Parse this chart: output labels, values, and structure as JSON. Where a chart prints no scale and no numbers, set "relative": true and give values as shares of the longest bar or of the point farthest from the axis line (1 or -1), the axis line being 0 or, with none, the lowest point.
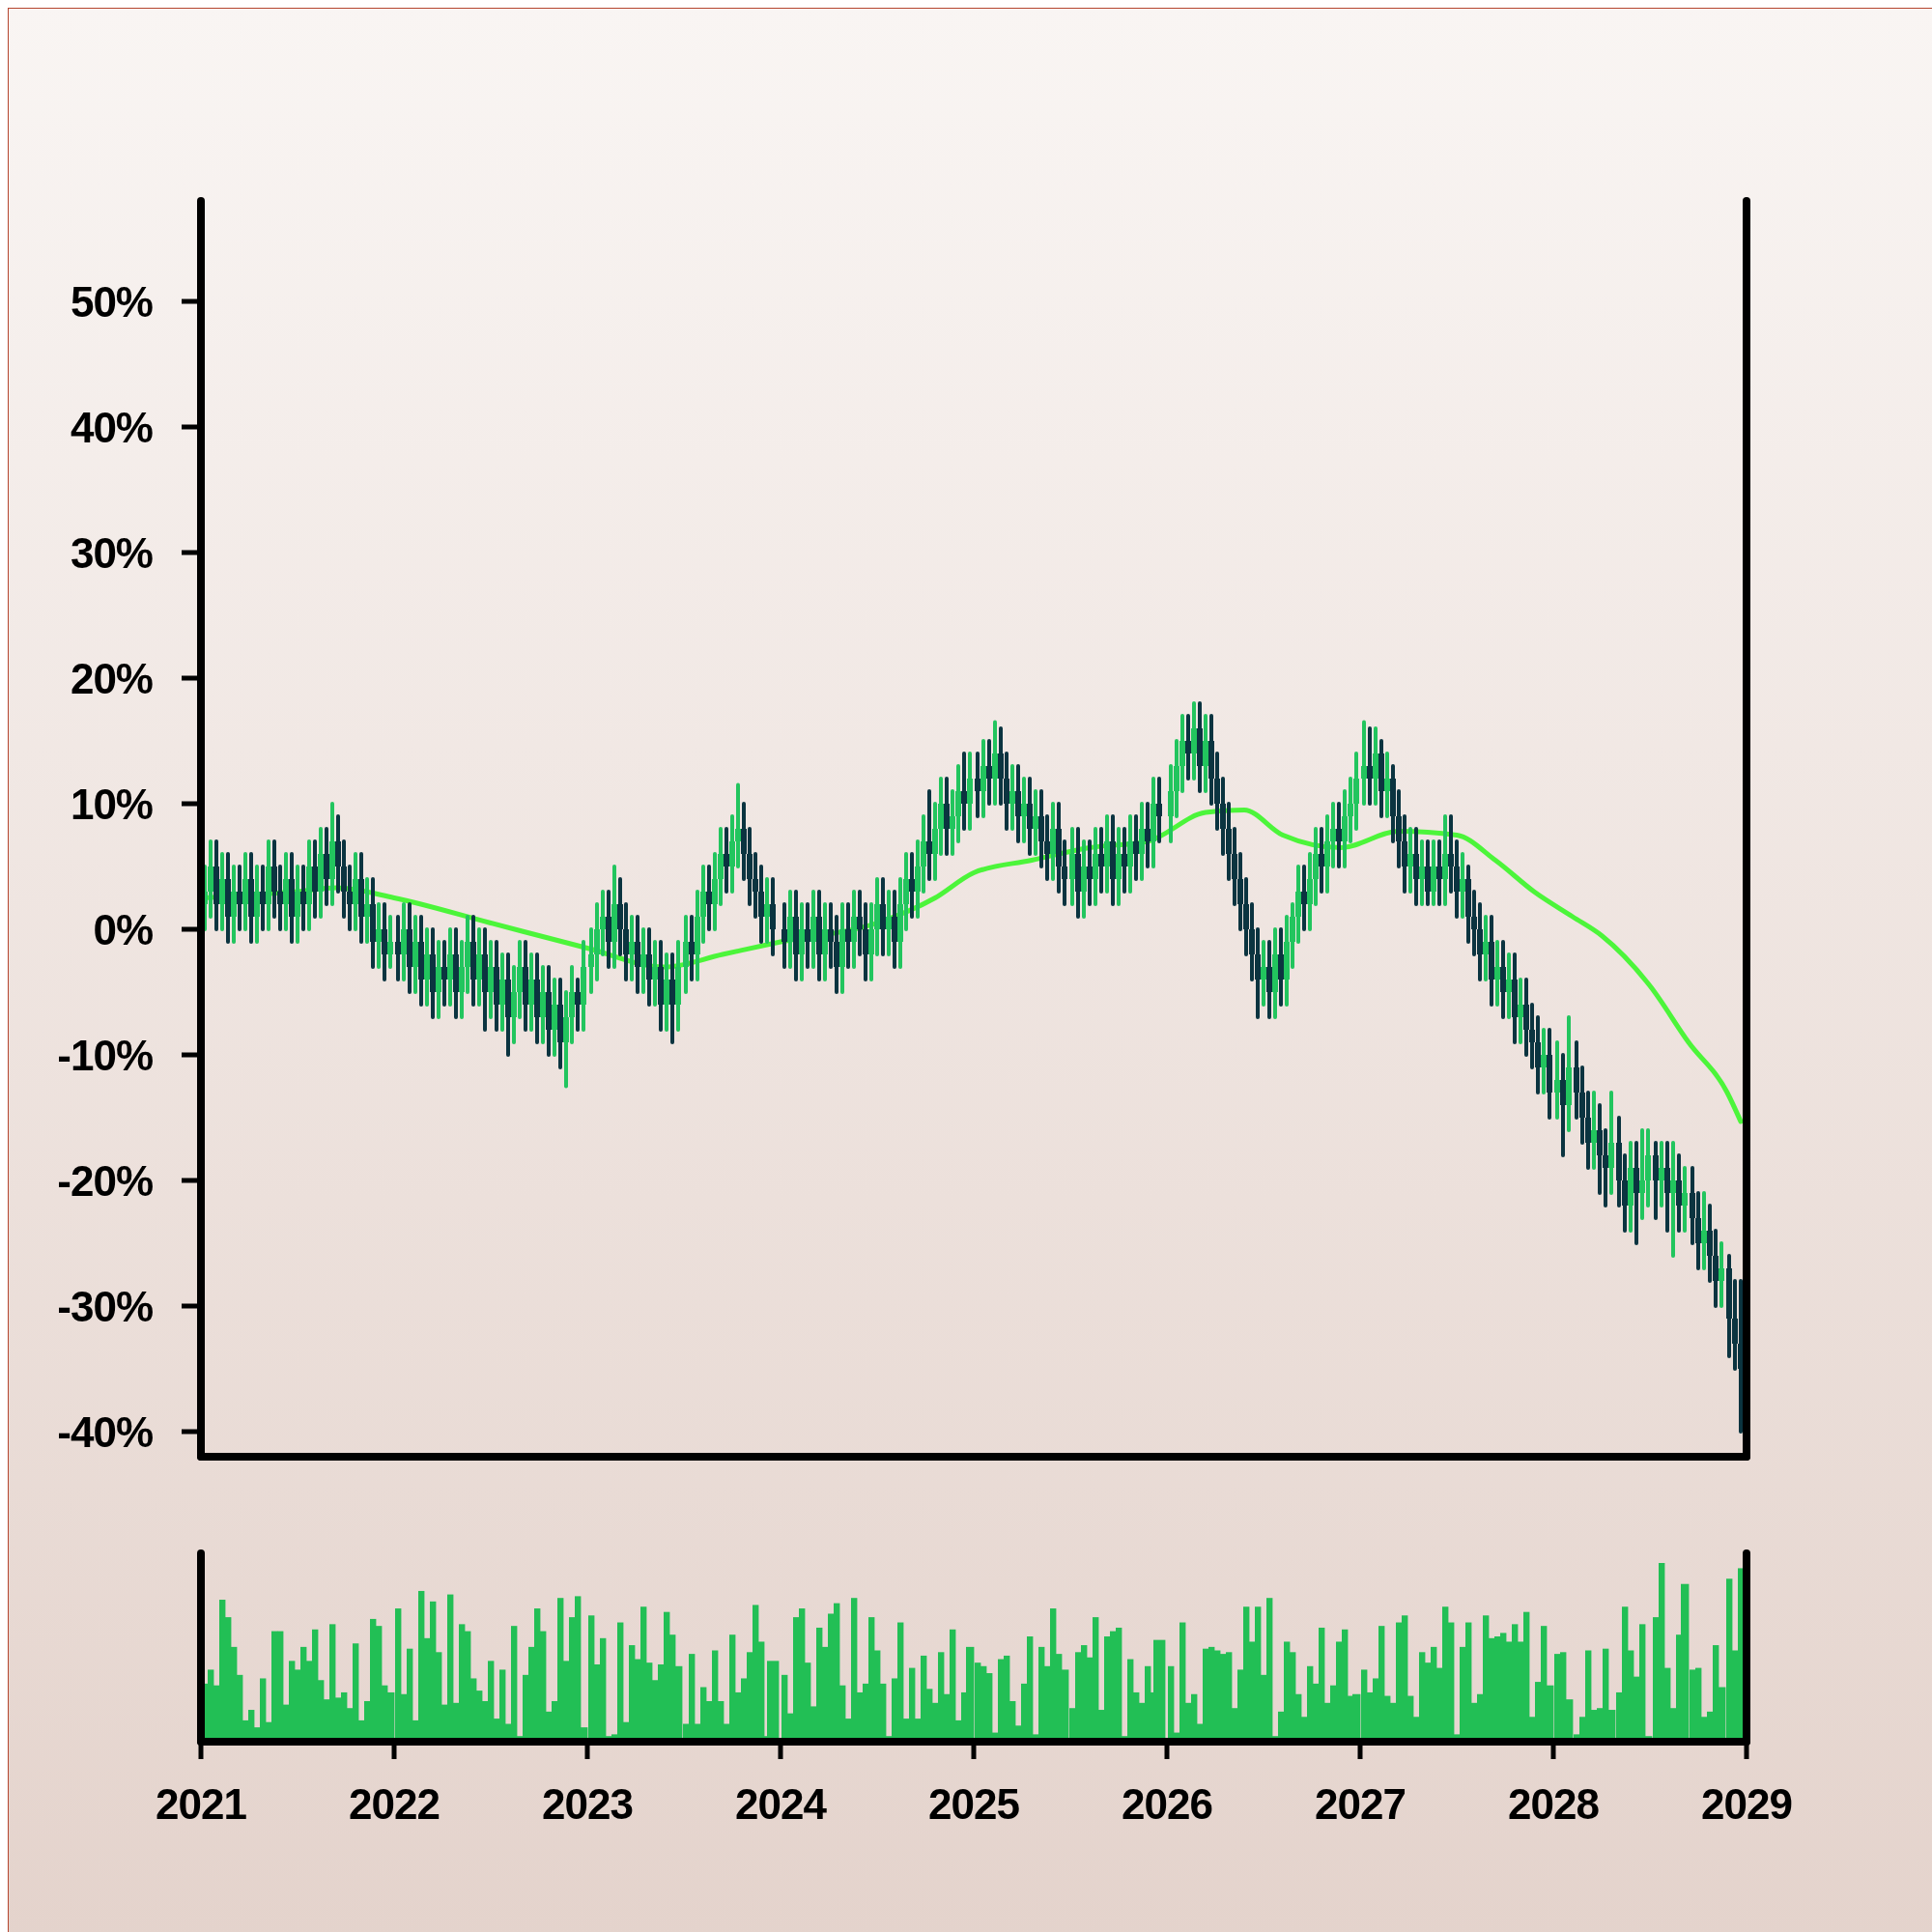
{
  "chart_data": [
    {
      "type": "candlestick",
      "xlim": [
        2021,
        2029
      ],
      "ylim": [
        -42,
        58
      ],
      "tick_labels": "y",
      "yticks": [
        {
          "value": -40,
          "label": "-40%"
        },
        {
          "value": -30,
          "label": "-30%"
        },
        {
          "value": -20,
          "label": "-20%"
        },
        {
          "value": -10,
          "label": "-10%"
        },
        {
          "value": 0,
          "label": "0%"
        },
        {
          "value": 10,
          "label": "10%"
        },
        {
          "value": 20,
          "label": "20%"
        },
        {
          "value": 30,
          "label": "30%"
        },
        {
          "value": 40,
          "label": "40%"
        },
        {
          "value": 50,
          "label": "50%"
        }
      ],
      "colors": [
        "#22c55e",
        "#22c55e",
        "#0b3440",
        "#22c55e",
        "#0b3440",
        "#22c55e",
        "#0b3440",
        "#22c55e",
        "#0b3440",
        "#22c55e",
        "#0b3440",
        "#22c55e",
        "#0b3440",
        "#0b3440",
        "#22c55e",
        "#0b3440",
        "#22c55e",
        "#0b3440",
        "#22c55e",
        "#0b3440",
        "#22c55e",
        "#0b3440",
        "#22c55e",
        "#0b3440",
        "#0b3440",
        "#0b3440",
        "#22c55e",
        "#0b3440",
        "#22c55e",
        "#0b3440",
        "#22c55e",
        "#0b3440",
        "#22c55e",
        "#0b3440",
        "#22c55e",
        "#0b3440",
        "#22c55e",
        "#0b3440",
        "#22c55e",
        "#0b3440",
        "#22c55e",
        "#0b3440",
        "#22c55e",
        "#0b3440",
        "#22c55e",
        "#22c55e",
        "#0b3440",
        "#22c55e",
        "#0b3440",
        "#22c55e",
        "#0b3440",
        "#22c55e",
        "#0b3440",
        "#22c55e",
        "#22c55e",
        "#0b3440",
        "#22c55e",
        "#0b3440",
        "#22c55e",
        "#0b3440",
        "#22c55e",
        "#0b3440",
        "#22c55e",
        "#22c55e",
        "#0b3440",
        "#22c55e",
        "#22c55e",
        "#22c55e",
        "#22c55e",
        "#0b3440",
        "#22c55e",
        "#0b3440",
        "#0b3440",
        "#22c55e",
        "#0b3440",
        "#22c55e",
        "#0b3440",
        "#22c55e",
        "#0b3440",
        "#22c55e",
        "#0b3440",
        "#22c55e",
        "#22c55e",
        "#0b3440",
        "#22c55e",
        "#22c55e",
        "#0b3440",
        "#22c55e",
        "#22c55e",
        "#0b3440",
        "#22c55e",
        "#22c55e",
        "#0b3440",
        "#0b3440",
        "#0b3440",
        "#0b3440",
        "#22c55e",
        "#0b3440",
        "#0b3440",
        "#22c55e",
        "#0b3440",
        "#22c55e",
        "#0b3440",
        "#22c55e",
        "#0b3440",
        "#22c55e",
        "#0b3440",
        "#0b3440",
        "#22c55e",
        "#0b3440",
        "#22c55e",
        "#0b3440",
        "#0b3440",
        "#22c55e",
        "#22c55e",
        "#0b3440",
        "#22c55e",
        "#0b3440",
        "#22c55e",
        "#22c55e",
        "#0b3440",
        "#22c55e",
        "#22c55e",
        "#0b3440",
        "#22c55e",
        "#22c55e",
        "#0b3440",
        "#22c55e",
        "#22c55e",
        "#0b3440",
        "#22c55e",
        "#0b3440",
        "#22c55e",
        "#0b3440",
        "#22c55e",
        "#0b3440",
        "#0b3440",
        "#22c55e",
        "#0b3440",
        "#22c55e",
        "#0b3440",
        "#22c55e",
        "#0b3440",
        "#0b3440",
        "#22c55e",
        "#0b3440",
        "#0b3440",
        "#22c55e",
        "#0b3440",
        "#22c55e",
        "#0b3440",
        "#22c55e",
        "#0b3440",
        "#22c55e",
        "#0b3440",
        "#22c55e",
        "#0b3440",
        "#22c55e",
        "#0b3440",
        "#22c55e",
        "#0b3440",
        "#22c55e",
        "#0b3440",
        "#22c55e",
        "#22c55e",
        "#22c55e",
        "#0b3440",
        "#22c55e",
        "#0b3440",
        "#22c55e",
        "#0b3440",
        "#0b3440",
        "#0b3440",
        "#0b3440",
        "#0b3440",
        "#0b3440",
        "#0b3440",
        "#0b3440",
        "#0b3440",
        "#22c55e",
        "#0b3440",
        "#22c55e",
        "#0b3440",
        "#22c55e",
        "#22c55e",
        "#22c55e",
        "#0b3440",
        "#22c55e",
        "#22c55e",
        "#0b3440",
        "#22c55e",
        "#22c55e",
        "#0b3440",
        "#22c55e",
        "#22c55e",
        "#22c55e",
        "#22c55e",
        "#0b3440",
        "#22c55e",
        "#0b3440",
        "#22c55e",
        "#0b3440",
        "#0b3440",
        "#0b3440",
        "#22c55e",
        "#0b3440",
        "#22c55e",
        "#0b3440",
        "#22c55e",
        "#0b3440",
        "#22c55e",
        "#0b3440",
        "#0b3440",
        "#22c55e",
        "#0b3440",
        "#0b3440",
        "#0b3440",
        "#22c55e",
        "#0b3440",
        "#22c55e",
        "#0b3440",
        "#22c55e",
        "#0b3440",
        "#22c55e",
        "#0b3440",
        "#0b3440",
        "#0b3440",
        "#22c55e",
        "#0b3440",
        "#22c55e",
        "#0b3440",
        "#22c55e",
        "#0b3440",
        "#0b3440",
        "#0b3440",
        "#22c55e",
        "#0b3440",
        "#0b3440",
        "#22c55e",
        "#0b3440",
        "#0b3440",
        "#22c55e",
        "#0b3440",
        "#22c55e",
        "#22c55e",
        "#0b3440",
        "#22c55e",
        "#0b3440",
        "#22c55e",
        "#0b3440",
        "#22c55e",
        "#0b3440",
        "#0b3440",
        "#22c55e",
        "#0b3440",
        "#0b3440",
        "#22c55e",
        "#0b3440",
        "#0b3440",
        "#0b3440"
      ],
      "x": [
        2021.02,
        2021.05,
        2021.08,
        2021.11,
        2021.14,
        2021.17,
        2021.2,
        2021.23,
        2021.26,
        2021.29,
        2021.32,
        2021.35,
        2021.38,
        2021.41,
        2021.44,
        2021.47,
        2021.5,
        2021.53,
        2021.56,
        2021.59,
        2021.62,
        2021.65,
        2021.68,
        2021.71,
        2021.74,
        2021.77,
        2021.8,
        2021.83,
        2021.86,
        2021.89,
        2021.92,
        2021.95,
        2021.98,
        2022.02,
        2022.05,
        2022.08,
        2022.11,
        2022.14,
        2022.17,
        2022.2,
        2022.23,
        2022.26,
        2022.29,
        2022.32,
        2022.35,
        2022.38,
        2022.41,
        2022.44,
        2022.47,
        2022.5,
        2022.53,
        2022.56,
        2022.59,
        2022.62,
        2022.65,
        2022.68,
        2022.71,
        2022.74,
        2022.77,
        2022.8,
        2022.83,
        2022.86,
        2022.89,
        2022.92,
        2022.95,
        2022.98,
        2023.02,
        2023.05,
        2023.08,
        2023.11,
        2023.14,
        2023.17,
        2023.2,
        2023.23,
        2023.26,
        2023.29,
        2023.32,
        2023.35,
        2023.38,
        2023.41,
        2023.44,
        2023.47,
        2023.51,
        2023.54,
        2023.57,
        2023.6,
        2023.63,
        2023.66,
        2023.69,
        2023.72,
        2023.75,
        2023.78,
        2023.81,
        2023.84,
        2023.87,
        2023.9,
        2023.93,
        2023.96,
        2024.02,
        2024.05,
        2024.08,
        2024.11,
        2024.14,
        2024.17,
        2024.2,
        2024.23,
        2024.26,
        2024.29,
        2024.32,
        2024.35,
        2024.38,
        2024.41,
        2024.44,
        2024.47,
        2024.5,
        2024.53,
        2024.56,
        2024.59,
        2024.62,
        2024.65,
        2024.68,
        2024.71,
        2024.74,
        2024.77,
        2024.8,
        2024.83,
        2024.86,
        2024.89,
        2024.92,
        2024.95,
        2024.98,
        2025.02,
        2025.05,
        2025.08,
        2025.11,
        2025.14,
        2025.17,
        2025.2,
        2025.23,
        2025.26,
        2025.29,
        2025.32,
        2025.35,
        2025.38,
        2025.41,
        2025.44,
        2025.47,
        2025.51,
        2025.54,
        2025.57,
        2025.6,
        2025.63,
        2025.66,
        2025.69,
        2025.72,
        2025.75,
        2025.78,
        2025.81,
        2025.84,
        2025.87,
        2025.9,
        2025.93,
        2025.96,
        2026.02,
        2026.05,
        2026.08,
        2026.11,
        2026.14,
        2026.17,
        2026.2,
        2026.23,
        2026.26,
        2026.29,
        2026.32,
        2026.35,
        2026.38,
        2026.41,
        2026.44,
        2026.47,
        2026.5,
        2026.53,
        2026.56,
        2026.59,
        2026.62,
        2026.65,
        2026.68,
        2026.71,
        2026.74,
        2026.77,
        2026.8,
        2026.83,
        2026.86,
        2026.89,
        2026.92,
        2026.95,
        2026.98,
        2027.02,
        2027.05,
        2027.08,
        2027.11,
        2027.14,
        2027.17,
        2027.2,
        2027.23,
        2027.26,
        2027.29,
        2027.32,
        2027.35,
        2027.38,
        2027.41,
        2027.44,
        2027.47,
        2027.5,
        2027.53,
        2027.56,
        2027.59,
        2027.62,
        2027.65,
        2027.68,
        2027.71,
        2027.74,
        2027.77,
        2027.8,
        2027.83,
        2027.86,
        2027.89,
        2027.92,
        2027.95,
        2027.98,
        2028.02,
        2028.05,
        2028.08,
        2028.12,
        2028.15,
        2028.18,
        2028.21,
        2028.24,
        2028.27,
        2028.3,
        2028.34,
        2028.37,
        2028.4,
        2028.43,
        2028.46,
        2028.49,
        2028.53,
        2028.56,
        2028.59,
        2028.62,
        2028.65,
        2028.68,
        2028.72,
        2028.75,
        2028.78,
        2028.81,
        2028.84,
        2028.87,
        2028.91,
        2028.94,
        2028.97
      ],
      "ohlc": [
        [
          2,
          5,
          0,
          3
        ],
        [
          3,
          7,
          1,
          5
        ],
        [
          5,
          7,
          0,
          2
        ],
        [
          2,
          6,
          0,
          4
        ],
        [
          4,
          6,
          -1,
          1
        ],
        [
          1,
          5,
          -1,
          3
        ],
        [
          3,
          5,
          0,
          2
        ],
        [
          2,
          6,
          0,
          4
        ],
        [
          4,
          6,
          -1,
          1
        ],
        [
          1,
          5,
          -1,
          3
        ],
        [
          3,
          5,
          0,
          2
        ],
        [
          2,
          7,
          0,
          5
        ],
        [
          5,
          7,
          1,
          3
        ],
        [
          3,
          5,
          0,
          2
        ],
        [
          2,
          6,
          0,
          4
        ],
        [
          4,
          6,
          -1,
          1
        ],
        [
          1,
          5,
          -1,
          3
        ],
        [
          3,
          5,
          0,
          2
        ],
        [
          2,
          7,
          0,
          5
        ],
        [
          5,
          7,
          1,
          3
        ],
        [
          3,
          8,
          1,
          6
        ],
        [
          6,
          8,
          2,
          4
        ],
        [
          4,
          10,
          2,
          7
        ],
        [
          7,
          9,
          3,
          5
        ],
        [
          5,
          7,
          1,
          3
        ],
        [
          3,
          5,
          0,
          2
        ],
        [
          2,
          6,
          0,
          4
        ],
        [
          4,
          6,
          -1,
          1
        ],
        [
          1,
          4,
          -1,
          2
        ],
        [
          2,
          4,
          -3,
          -1
        ],
        [
          -1,
          2,
          -3,
          0
        ],
        [
          0,
          2,
          -4,
          -2
        ],
        [
          -2,
          1,
          -3,
          -1
        ],
        [
          -1,
          1,
          -4,
          -2
        ],
        [
          -2,
          2,
          -4,
          0
        ],
        [
          0,
          2,
          -5,
          -3
        ],
        [
          -3,
          1,
          -5,
          -1
        ],
        [
          -1,
          1,
          -6,
          -4
        ],
        [
          -4,
          0,
          -6,
          -2
        ],
        [
          -2,
          0,
          -7,
          -5
        ],
        [
          -5,
          -1,
          -7,
          -3
        ],
        [
          -3,
          -1,
          -6,
          -4
        ],
        [
          -4,
          0,
          -6,
          -2
        ],
        [
          -2,
          0,
          -7,
          -5
        ],
        [
          -5,
          -1,
          -7,
          -3
        ],
        [
          -3,
          1,
          -5,
          -1
        ],
        [
          -1,
          1,
          -6,
          -4
        ],
        [
          -4,
          0,
          -6,
          -2
        ],
        [
          -2,
          0,
          -8,
          -5
        ],
        [
          -5,
          -1,
          -7,
          -3
        ],
        [
          -3,
          -1,
          -8,
          -6
        ],
        [
          -6,
          -2,
          -8,
          -4
        ],
        [
          -4,
          -2,
          -10,
          -7
        ],
        [
          -7,
          -3,
          -9,
          -5
        ],
        [
          -5,
          -1,
          -7,
          -3
        ],
        [
          -3,
          -1,
          -8,
          -6
        ],
        [
          -6,
          -2,
          -8,
          -4
        ],
        [
          -4,
          -2,
          -9,
          -7
        ],
        [
          -7,
          -3,
          -9,
          -5
        ],
        [
          -5,
          -3,
          -10,
          -8
        ],
        [
          -8,
          -4,
          -10,
          -6
        ],
        [
          -6,
          -4,
          -11,
          -9
        ],
        [
          -9,
          -5,
          -12.5,
          -7
        ],
        [
          -7,
          -3,
          -9,
          -5
        ],
        [
          -5,
          -4,
          -8,
          -6
        ],
        [
          -6,
          -1,
          -8,
          -3
        ],
        [
          -3,
          0,
          -5,
          -2
        ],
        [
          -2,
          2,
          -4,
          0
        ],
        [
          0,
          3,
          -2,
          1
        ],
        [
          1,
          3,
          -3,
          -1
        ],
        [
          -1,
          5,
          -3,
          2
        ],
        [
          2,
          4,
          -2,
          0
        ],
        [
          0,
          2,
          -4,
          -2
        ],
        [
          -2,
          1,
          -4,
          -1
        ],
        [
          -1,
          1,
          -5,
          -3
        ],
        [
          -3,
          0,
          -5,
          -2
        ],
        [
          -2,
          0,
          -6,
          -4
        ],
        [
          -4,
          -1,
          -6,
          -3
        ],
        [
          -3,
          -1,
          -8,
          -6
        ],
        [
          -6,
          -2,
          -8,
          -4
        ],
        [
          -4,
          -2,
          -9,
          -6
        ],
        [
          -6,
          -1,
          -8,
          -3
        ],
        [
          -3,
          1,
          -5,
          -1
        ],
        [
          -1,
          1,
          -4,
          -2
        ],
        [
          -2,
          3,
          -4,
          1
        ],
        [
          1,
          5,
          -1,
          3
        ],
        [
          3,
          5,
          0,
          2
        ],
        [
          2,
          6,
          0,
          4
        ],
        [
          4,
          8,
          2,
          6
        ],
        [
          6,
          8,
          3,
          5
        ],
        [
          5,
          9,
          3,
          7
        ],
        [
          7,
          11.5,
          5,
          8
        ],
        [
          8,
          10,
          4,
          6
        ],
        [
          6,
          8,
          2,
          4
        ],
        [
          4,
          6,
          1,
          3
        ],
        [
          3,
          5,
          -1,
          1
        ],
        [
          1,
          4,
          -1,
          2
        ],
        [
          2,
          4,
          -2,
          0
        ],
        [
          0,
          2,
          -3,
          -1
        ],
        [
          -1,
          3,
          -3,
          1
        ],
        [
          1,
          3,
          -4,
          -2
        ],
        [
          -2,
          2,
          -4,
          0
        ],
        [
          0,
          2,
          -3,
          -1
        ],
        [
          -1,
          3,
          -3,
          1
        ],
        [
          1,
          3,
          -4,
          -2
        ],
        [
          -2,
          2,
          -4,
          0
        ],
        [
          0,
          2,
          -3,
          -1
        ],
        [
          -1,
          1,
          -5,
          -3
        ],
        [
          -3,
          2,
          -5,
          0
        ],
        [
          0,
          2,
          -3,
          -1
        ],
        [
          -1,
          3,
          -3,
          1
        ],
        [
          1,
          3,
          -2,
          0
        ],
        [
          0,
          2,
          -4,
          -2
        ],
        [
          -2,
          2,
          -4,
          0
        ],
        [
          0,
          4,
          -2,
          2
        ],
        [
          2,
          4,
          -2,
          0
        ],
        [
          0,
          3,
          -2,
          1
        ],
        [
          1,
          3,
          -3,
          -1
        ],
        [
          -1,
          4,
          -3,
          2
        ],
        [
          2,
          6,
          0,
          4
        ],
        [
          4,
          6,
          1,
          3
        ],
        [
          3,
          7,
          1,
          5
        ],
        [
          5,
          9,
          3,
          7
        ],
        [
          7,
          11,
          4,
          6
        ],
        [
          6,
          10,
          4,
          8
        ],
        [
          8,
          12,
          6,
          10
        ],
        [
          10,
          12,
          6,
          8
        ],
        [
          8,
          11,
          6,
          9
        ],
        [
          9,
          13,
          7,
          11
        ],
        [
          11,
          14,
          8,
          10
        ],
        [
          10,
          14,
          8,
          12
        ],
        [
          12,
          14,
          9,
          11
        ],
        [
          11,
          15,
          9,
          13
        ],
        [
          13,
          15,
          10,
          12
        ],
        [
          12,
          16.5,
          10,
          14
        ],
        [
          14,
          16,
          10,
          12
        ],
        [
          12,
          14,
          8,
          10
        ],
        [
          10,
          13,
          8,
          11
        ],
        [
          11,
          13,
          7,
          9
        ],
        [
          9,
          12,
          7,
          10
        ],
        [
          10,
          12,
          6,
          8
        ],
        [
          8,
          11,
          6,
          9
        ],
        [
          9,
          11,
          5,
          7
        ],
        [
          7,
          9,
          4,
          6
        ],
        [
          6,
          10,
          4,
          8
        ],
        [
          8,
          10,
          3,
          5
        ],
        [
          5,
          7,
          2,
          4
        ],
        [
          4,
          8,
          2,
          6
        ],
        [
          6,
          8,
          1,
          3
        ],
        [
          3,
          7,
          1,
          5
        ],
        [
          5,
          7,
          2,
          4
        ],
        [
          4,
          8,
          2,
          6
        ],
        [
          6,
          8,
          3,
          5
        ],
        [
          5,
          9,
          3,
          7
        ],
        [
          7,
          9,
          2,
          4
        ],
        [
          4,
          8,
          2,
          6
        ],
        [
          6,
          8,
          3,
          5
        ],
        [
          5,
          9,
          3,
          7
        ],
        [
          7,
          9,
          4,
          6
        ],
        [
          6,
          10,
          4,
          8
        ],
        [
          8,
          10,
          5,
          7
        ],
        [
          7,
          12,
          5,
          10
        ],
        [
          10,
          12,
          7,
          9
        ],
        [
          9,
          13,
          7,
          11
        ],
        [
          11,
          15,
          9,
          13
        ],
        [
          13,
          17,
          11,
          15
        ],
        [
          15,
          17,
          12,
          14
        ],
        [
          14,
          18,
          12,
          16
        ],
        [
          16,
          18,
          11,
          13
        ],
        [
          13,
          17,
          11,
          15
        ],
        [
          15,
          17,
          10,
          12
        ],
        [
          12,
          14,
          8,
          10
        ],
        [
          10,
          12,
          6,
          8
        ],
        [
          8,
          10,
          4,
          6
        ],
        [
          6,
          8,
          2,
          4
        ],
        [
          4,
          6,
          0,
          2
        ],
        [
          2,
          4,
          -2,
          0
        ],
        [
          0,
          2,
          -4,
          -2
        ],
        [
          -2,
          0,
          -7,
          -4
        ],
        [
          -4,
          -1,
          -6,
          -3
        ],
        [
          -3,
          -1,
          -7,
          -5
        ],
        [
          -5,
          0,
          -7,
          -2
        ],
        [
          -2,
          0,
          -6,
          -4
        ],
        [
          -4,
          1,
          -6,
          -1
        ],
        [
          -1,
          2,
          -3,
          1
        ],
        [
          1,
          5,
          -1,
          3
        ],
        [
          3,
          5,
          0,
          2
        ],
        [
          2,
          6,
          0,
          4
        ],
        [
          4,
          8,
          2,
          6
        ],
        [
          6,
          8,
          3,
          5
        ],
        [
          5,
          9,
          3,
          7
        ],
        [
          7,
          10,
          5,
          8
        ],
        [
          8,
          10,
          5,
          7
        ],
        [
          7,
          11,
          5,
          9
        ],
        [
          9,
          12,
          7,
          10
        ],
        [
          10,
          14,
          8,
          12
        ],
        [
          12,
          16.5,
          10,
          13
        ],
        [
          13,
          16,
          10,
          12
        ],
        [
          12,
          16,
          10,
          14
        ],
        [
          14,
          15,
          9,
          11
        ],
        [
          11,
          14,
          9,
          12
        ],
        [
          12,
          13,
          7,
          9
        ],
        [
          9,
          11,
          5,
          7
        ],
        [
          7,
          9,
          3,
          5
        ],
        [
          5,
          8,
          3,
          6
        ],
        [
          6,
          8,
          2,
          4
        ],
        [
          4,
          7,
          2,
          5
        ],
        [
          5,
          7,
          2,
          3
        ],
        [
          3,
          7,
          2,
          5
        ],
        [
          5,
          7,
          2,
          4
        ],
        [
          4,
          9,
          2,
          6
        ],
        [
          6,
          9,
          3,
          5
        ],
        [
          5,
          7,
          1,
          3
        ],
        [
          3,
          6,
          1,
          4
        ],
        [
          4,
          5,
          -1,
          1
        ],
        [
          1,
          3,
          -2,
          0
        ],
        [
          0,
          2,
          -4,
          -2
        ],
        [
          -2,
          1,
          -4,
          -1
        ],
        [
          -1,
          1,
          -6,
          -4
        ],
        [
          -4,
          -1,
          -6,
          -3
        ],
        [
          -3,
          -1,
          -7,
          -5
        ],
        [
          -5,
          -2,
          -7,
          -4
        ],
        [
          -4,
          -2,
          -9,
          -7
        ],
        [
          -7,
          -4,
          -9,
          -6
        ],
        [
          -6,
          -4,
          -10,
          -8
        ],
        [
          -8,
          -6,
          -11,
          -9
        ],
        [
          -9,
          -7,
          -13,
          -11
        ],
        [
          -11,
          -8,
          -13,
          -10
        ],
        [
          -10,
          -8,
          -15,
          -13
        ],
        [
          -13,
          -9,
          -15,
          -12
        ],
        [
          -12,
          -10,
          -18,
          -14
        ],
        [
          -14,
          -7,
          -16,
          -11
        ],
        [
          -11,
          -9,
          -15,
          -13
        ],
        [
          -13,
          -11,
          -17,
          -15
        ],
        [
          -15,
          -13,
          -19,
          -17
        ],
        [
          -17,
          -13,
          -19,
          -16
        ],
        [
          -16,
          -14,
          -21,
          -18
        ],
        [
          -18,
          -16,
          -22,
          -19
        ],
        [
          -19,
          -13,
          -21,
          -17
        ],
        [
          -17,
          -15,
          -22,
          -20
        ],
        [
          -20,
          -18,
          -24,
          -22
        ],
        [
          -22,
          -17,
          -24,
          -19
        ],
        [
          -19,
          -17,
          -25,
          -21
        ],
        [
          -21,
          -16,
          -23,
          -20
        ],
        [
          -20,
          -16,
          -22,
          -18
        ],
        [
          -18,
          -17,
          -23,
          -20
        ],
        [
          -20,
          -17,
          -22,
          -19
        ],
        [
          -19,
          -17,
          -24,
          -21
        ],
        [
          -21,
          -17,
          -26,
          -20
        ],
        [
          -20,
          -18,
          -24,
          -22
        ],
        [
          -22,
          -19,
          -24,
          -21
        ],
        [
          -21,
          -19,
          -25,
          -23
        ],
        [
          -23,
          -21,
          -27,
          -25
        ],
        [
          -25,
          -21,
          -27,
          -24
        ],
        [
          -24,
          -22,
          -28,
          -26
        ],
        [
          -26,
          -24,
          -30,
          -28
        ],
        [
          -28,
          -25,
          -30,
          -27
        ],
        [
          -27,
          -26,
          -34,
          -31
        ],
        [
          -31,
          -28,
          -35,
          -33
        ],
        [
          -33,
          -28,
          -40,
          -35
        ]
      ],
      "series": [
        {
          "type": "line",
          "color": "#4cf53a",
          "x": [
            2021.02,
            2021.2,
            2021.5,
            2021.7,
            2022.0,
            2022.5,
            2023.0,
            2023.4,
            2023.7,
            2024.0,
            2024.5,
            2024.8,
            2025.0,
            2025.3,
            2025.6,
            2025.9,
            2026.2,
            2026.4,
            2026.6,
            2026.9,
            2027.2,
            2027.5,
            2027.7,
            2027.9,
            2028.1,
            2028.25,
            2028.5,
            2028.7,
            2028.9,
            2028.97
          ],
          "values": [
            2.5,
            2.7,
            3,
            3.3,
            2.5,
            0.5,
            -1.5,
            -3,
            -2,
            -1,
            0.5,
            2.5,
            4.5,
            5.5,
            6.5,
            7,
            9.3,
            9.5,
            7.5,
            6.5,
            7.8,
            7.5,
            5.5,
            3,
            1,
            -0.5,
            -4.5,
            -9,
            -13,
            -15.3
          ]
        }
      ]
    },
    {
      "type": "bar",
      "relative": true,
      "color": "#22bf55",
      "xlim": [
        2021,
        2029
      ],
      "tick_labels": "x",
      "xticks": [
        2021,
        2022,
        2023,
        2024,
        2025,
        2026,
        2027,
        2028,
        2029
      ],
      "x": [
        2021.02,
        2021.05,
        2021.08,
        2021.11,
        2021.14,
        2021.17,
        2021.2,
        2021.23,
        2021.26,
        2021.29,
        2021.32,
        2021.35,
        2021.38,
        2021.41,
        2021.44,
        2021.47,
        2021.5,
        2021.53,
        2021.56,
        2021.59,
        2021.62,
        2021.65,
        2021.68,
        2021.71,
        2021.74,
        2021.77,
        2021.8,
        2021.83,
        2021.86,
        2021.89,
        2021.92,
        2021.95,
        2021.98,
        2022.02,
        2022.05,
        2022.08,
        2022.11,
        2022.14,
        2022.17,
        2022.2,
        2022.23,
        2022.26,
        2022.29,
        2022.32,
        2022.35,
        2022.38,
        2022.41,
        2022.44,
        2022.47,
        2022.5,
        2022.53,
        2022.56,
        2022.59,
        2022.62,
        2022.65,
        2022.68,
        2022.71,
        2022.74,
        2022.77,
        2022.8,
        2022.83,
        2022.86,
        2022.89,
        2022.92,
        2022.95,
        2022.98,
        2023.02,
        2023.05,
        2023.08,
        2023.11,
        2023.14,
        2023.17,
        2023.2,
        2023.23,
        2023.26,
        2023.29,
        2023.32,
        2023.35,
        2023.38,
        2023.41,
        2023.44,
        2023.47,
        2023.51,
        2023.54,
        2023.57,
        2023.6,
        2023.63,
        2023.66,
        2023.69,
        2023.72,
        2023.75,
        2023.78,
        2023.81,
        2023.84,
        2023.87,
        2023.9,
        2023.93,
        2023.96,
        2024.02,
        2024.05,
        2024.08,
        2024.11,
        2024.14,
        2024.17,
        2024.2,
        2024.23,
        2024.26,
        2024.29,
        2024.32,
        2024.35,
        2024.38,
        2024.41,
        2024.44,
        2024.47,
        2024.5,
        2024.53,
        2024.56,
        2024.59,
        2024.62,
        2024.65,
        2024.68,
        2024.71,
        2024.74,
        2024.77,
        2024.8,
        2024.83,
        2024.86,
        2024.89,
        2024.92,
        2024.95,
        2024.98,
        2025.02,
        2025.05,
        2025.08,
        2025.11,
        2025.14,
        2025.17,
        2025.2,
        2025.23,
        2025.26,
        2025.29,
        2025.32,
        2025.35,
        2025.38,
        2025.41,
        2025.44,
        2025.47,
        2025.51,
        2025.54,
        2025.57,
        2025.6,
        2025.63,
        2025.66,
        2025.69,
        2025.72,
        2025.75,
        2025.78,
        2025.81,
        2025.84,
        2025.87,
        2025.9,
        2025.93,
        2025.96,
        2026.02,
        2026.05,
        2026.08,
        2026.11,
        2026.14,
        2026.17,
        2026.2,
        2026.23,
        2026.26,
        2026.29,
        2026.32,
        2026.35,
        2026.38,
        2026.41,
        2026.44,
        2026.47,
        2026.5,
        2026.53,
        2026.56,
        2026.59,
        2026.62,
        2026.65,
        2026.68,
        2026.71,
        2026.74,
        2026.77,
        2026.8,
        2026.83,
        2026.86,
        2026.89,
        2026.92,
        2026.95,
        2026.98,
        2027.02,
        2027.05,
        2027.08,
        2027.11,
        2027.14,
        2027.17,
        2027.2,
        2027.23,
        2027.26,
        2027.29,
        2027.32,
        2027.35,
        2027.38,
        2027.41,
        2027.44,
        2027.47,
        2027.5,
        2027.53,
        2027.56,
        2027.59,
        2027.62,
        2027.65,
        2027.68,
        2027.71,
        2027.74,
        2027.77,
        2027.8,
        2027.83,
        2027.86,
        2027.89,
        2027.92,
        2027.95,
        2027.98,
        2028.02,
        2028.05,
        2028.08,
        2028.12,
        2028.15,
        2028.18,
        2028.21,
        2028.24,
        2028.27,
        2028.3,
        2028.34,
        2028.37,
        2028.4,
        2028.43,
        2028.46,
        2028.49,
        2028.53,
        2028.56,
        2028.59,
        2028.62,
        2028.65,
        2028.68,
        2028.72,
        2028.75,
        2028.78,
        2028.81,
        2028.84,
        2028.87,
        2028.91,
        2028.94,
        2028.97
      ],
      "values": [
        0.31,
        0.39,
        0.3,
        0.79,
        0.69,
        0.52,
        0.36,
        0.1,
        0.16,
        0.06,
        0.34,
        0.09,
        0.61,
        0.61,
        0.19,
        0.44,
        0.39,
        0.52,
        0.44,
        0.62,
        0.33,
        0.22,
        0.65,
        0.23,
        0.26,
        0.17,
        0.54,
        0.1,
        0.21,
        0.68,
        0.64,
        0.3,
        0.26,
        0.74,
        0.25,
        0.51,
        0.1,
        0.84,
        0.57,
        0.78,
        0.49,
        0.19,
        0.82,
        0.2,
        0.65,
        0.61,
        0.34,
        0.27,
        0.21,
        0.44,
        0.11,
        0.39,
        0.08,
        0.64,
        0.01,
        0.36,
        0.52,
        0.74,
        0.61,
        0.15,
        0.21,
        0.8,
        0.44,
        0.69,
        0.81,
        0.06,
        0.7,
        0.42,
        0.57,
        0.01,
        0.02,
        0.66,
        0.09,
        0.53,
        0.45,
        0.75,
        0.43,
        0.33,
        0.42,
        0.72,
        0.59,
        0.41,
        0.08,
        0.48,
        0.08,
        0.29,
        0.21,
        0.5,
        0.21,
        0.08,
        0.59,
        0.26,
        0.34,
        0.49,
        0.76,
        0.55,
        0.01,
        0.44,
        0.36,
        0.14,
        0.69,
        0.74,
        0.43,
        0.18,
        0.63,
        0.52,
        0.71,
        0.77,
        0.3,
        0.11,
        0.8,
        0.26,
        0.31,
        0.69,
        0.5,
        0.31,
        0.01,
        0.34,
        0.66,
        0.11,
        0.4,
        0.11,
        0.47,
        0.28,
        0.2,
        0.49,
        0.25,
        0.62,
        0.1,
        0.26,
        0.52,
        0.43,
        0.41,
        0.37,
        0.03,
        0.45,
        0.47,
        0.21,
        0.07,
        0.31,
        0.58,
        0.02,
        0.52,
        0.41,
        0.74,
        0.48,
        0.39,
        0.17,
        0.49,
        0.53,
        0.46,
        0.69,
        0.16,
        0.58,
        0.61,
        0.63,
        0.01,
        0.45,
        0.26,
        0.2,
        0.41,
        0.26,
        0.56,
        0.41,
        0.03,
        0.66,
        0.2,
        0.25,
        0.08,
        0.51,
        0.52,
        0.5,
        0.48,
        0.49,
        0.17,
        0.39,
        0.75,
        0.55,
        0.75,
        0.36,
        0.8,
        0.01,
        0.15,
        0.55,
        0.49,
        0.25,
        0.12,
        0.41,
        0.31,
        0.63,
        0.2,
        0.3,
        0.55,
        0.62,
        0.24,
        0.25,
        0.39,
        0.26,
        0.34,
        0.64,
        0.24,
        0.2,
        0.66,
        0.7,
        0.24,
        0.12,
        0.49,
        0.43,
        0.52,
        0.4,
        0.75,
        0.66,
        0.02,
        0.52,
        0.66,
        0.2,
        0.25,
        0.7,
        0.57,
        0.58,
        0.6,
        0.55,
        0.65,
        0.55,
        0.72,
        0.12,
        0.32,
        0.64,
        0.3,
        0.48,
        0.49,
        0.22,
        0.02,
        0.12,
        0.5,
        0.16,
        0.17,
        0.51,
        0.16,
        0.26,
        0.75,
        0.5,
        0.35,
        0.65,
        0.01,
        0.69,
        1.0,
        0.4,
        0.17,
        0.59,
        0.88,
        0.39,
        0.4,
        0.12,
        0.15,
        0.53,
        0.29,
        0.91,
        0.5,
        0.97
      ]
    }
  ]
}
